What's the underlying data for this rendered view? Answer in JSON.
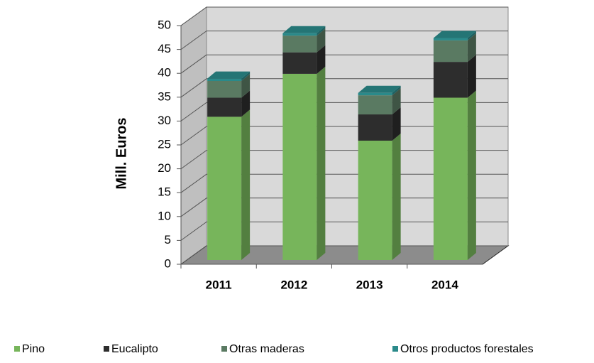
{
  "chart_data": {
    "type": "bar",
    "stacked": true,
    "y_label": "Mill. Euros",
    "categories": [
      "2011",
      "2012",
      "2013",
      "2014"
    ],
    "series": [
      {
        "name": "Pino",
        "color": "#77b55b",
        "values": [
          30,
          39,
          25,
          34
        ]
      },
      {
        "name": "Eucalipto",
        "color": "#2d2d2d",
        "values": [
          4,
          4.5,
          5.5,
          7.5
        ]
      },
      {
        "name": "Otras maderas",
        "color": "#5a7a62",
        "values": [
          3.5,
          3.5,
          4,
          4.5
        ]
      },
      {
        "name": "Otros productos forestales",
        "color": "#2a8a8a",
        "values": [
          0.5,
          0.5,
          0.5,
          0.5
        ]
      }
    ],
    "ylim": [
      0,
      50
    ],
    "yticks": [
      0,
      5,
      10,
      15,
      20,
      25,
      30,
      35,
      40,
      45,
      50
    ],
    "grid": true,
    "legend": "bottom"
  }
}
